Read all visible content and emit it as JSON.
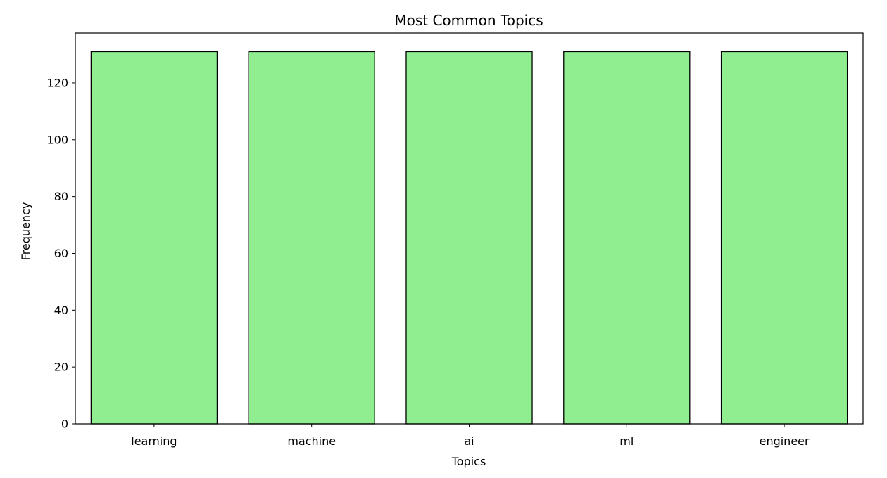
{
  "chart_data": {
    "type": "bar",
    "title": "Most Common Topics",
    "xlabel": "Topics",
    "ylabel": "Frequency",
    "categories": [
      "learning",
      "machine",
      "ai",
      "ml",
      "engineer"
    ],
    "values": [
      131,
      131,
      131,
      131,
      131
    ],
    "ylim": [
      0,
      137.55
    ],
    "yticks": [
      0,
      20,
      40,
      60,
      80,
      100,
      120
    ],
    "grid": false,
    "legend": "none",
    "colors": {
      "bar_fill": "#90ee90",
      "bar_edge": "#000000",
      "axes": "#000000",
      "background": "#ffffff"
    }
  }
}
